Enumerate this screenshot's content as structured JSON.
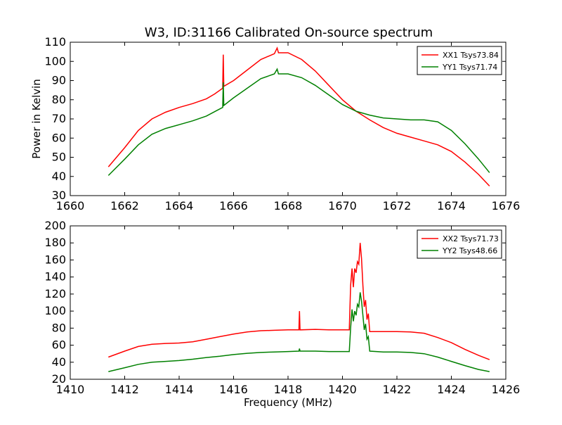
{
  "chart_data": [
    {
      "type": "line",
      "title": "W3, ID:31166 Calibrated On-source spectrum",
      "xlabel": "",
      "ylabel": "Power in Kelvin",
      "xlim": [
        1660,
        1676
      ],
      "ylim": [
        30,
        110
      ],
      "xticks": [
        1660,
        1662,
        1664,
        1666,
        1668,
        1670,
        1672,
        1674,
        1676
      ],
      "yticks": [
        30,
        40,
        50,
        60,
        70,
        80,
        90,
        100,
        110
      ],
      "grid": false,
      "legend_position": "top-right",
      "series": [
        {
          "name": "XX1 Tsys73.84",
          "color": "#ff0000",
          "points": [
            [
              1661.4,
              45
            ],
            [
              1662,
              55
            ],
            [
              1662.5,
              64
            ],
            [
              1663,
              70
            ],
            [
              1663.5,
              73.5
            ],
            [
              1664,
              76
            ],
            [
              1664.5,
              78
            ],
            [
              1665,
              80.5
            ],
            [
              1665.3,
              83
            ],
            [
              1665.6,
              86
            ],
            [
              1665.62,
              103.5
            ],
            [
              1665.64,
              87
            ],
            [
              1666,
              90
            ],
            [
              1666.5,
              95.5
            ],
            [
              1667,
              101
            ],
            [
              1667.5,
              104
            ],
            [
              1667.6,
              107
            ],
            [
              1667.65,
              104.5
            ],
            [
              1668,
              104.5
            ],
            [
              1668.5,
              101
            ],
            [
              1669,
              95
            ],
            [
              1669.5,
              87.5
            ],
            [
              1670,
              80
            ],
            [
              1670.5,
              74
            ],
            [
              1671,
              69.5
            ],
            [
              1671.5,
              65.5
            ],
            [
              1672,
              62.5
            ],
            [
              1672.5,
              60.5
            ],
            [
              1673,
              58.5
            ],
            [
              1673.5,
              56.5
            ],
            [
              1674,
              53
            ],
            [
              1674.5,
              47.5
            ],
            [
              1675,
              41
            ],
            [
              1675.4,
              35
            ]
          ]
        },
        {
          "name": "YY1 Tsys71.74",
          "color": "#008000",
          "points": [
            [
              1661.4,
              40.5
            ],
            [
              1662,
              49
            ],
            [
              1662.5,
              56.5
            ],
            [
              1663,
              62
            ],
            [
              1663.5,
              65
            ],
            [
              1664,
              67
            ],
            [
              1664.5,
              69
            ],
            [
              1665,
              71.5
            ],
            [
              1665.4,
              74.5
            ],
            [
              1665.6,
              76
            ],
            [
              1665.62,
              89
            ],
            [
              1665.64,
              77
            ],
            [
              1666,
              81
            ],
            [
              1666.5,
              86
            ],
            [
              1667,
              91
            ],
            [
              1667.5,
              93.5
            ],
            [
              1667.6,
              96
            ],
            [
              1667.65,
              93.5
            ],
            [
              1668,
              93.5
            ],
            [
              1668.5,
              91.5
            ],
            [
              1669,
              87.5
            ],
            [
              1669.5,
              82.5
            ],
            [
              1670,
              77.5
            ],
            [
              1670.5,
              74
            ],
            [
              1671,
              72
            ],
            [
              1671.5,
              70.5
            ],
            [
              1672,
              70
            ],
            [
              1672.5,
              69.5
            ],
            [
              1673,
              69.5
            ],
            [
              1673.5,
              68.5
            ],
            [
              1674,
              64
            ],
            [
              1674.5,
              57
            ],
            [
              1675,
              49
            ],
            [
              1675.4,
              42
            ]
          ]
        }
      ]
    },
    {
      "type": "line",
      "title": "",
      "xlabel": "Frequency (MHz)",
      "ylabel": "",
      "xlim": [
        1410,
        1426
      ],
      "ylim": [
        20,
        200
      ],
      "xticks": [
        1410,
        1412,
        1414,
        1416,
        1418,
        1420,
        1422,
        1424,
        1426
      ],
      "yticks": [
        20,
        40,
        60,
        80,
        100,
        120,
        140,
        160,
        180,
        200
      ],
      "grid": false,
      "legend_position": "top-right",
      "series": [
        {
          "name": "XX2 Tsys71.73",
          "color": "#ff0000",
          "points": [
            [
              1411.4,
              46
            ],
            [
              1412,
              53
            ],
            [
              1412.5,
              58.5
            ],
            [
              1413,
              61
            ],
            [
              1413.5,
              62
            ],
            [
              1414,
              62.5
            ],
            [
              1414.5,
              64
            ],
            [
              1415,
              67
            ],
            [
              1415.5,
              70
            ],
            [
              1416,
              73
            ],
            [
              1416.5,
              75.5
            ],
            [
              1417,
              77
            ],
            [
              1417.5,
              77.5
            ],
            [
              1418,
              78
            ],
            [
              1418.4,
              78
            ],
            [
              1418.42,
              100
            ],
            [
              1418.44,
              78
            ],
            [
              1419,
              78.5
            ],
            [
              1419.5,
              78
            ],
            [
              1420,
              78
            ],
            [
              1420.25,
              78
            ],
            [
              1420.3,
              130
            ],
            [
              1420.35,
              150
            ],
            [
              1420.4,
              128
            ],
            [
              1420.45,
              150
            ],
            [
              1420.5,
              145
            ],
            [
              1420.55,
              158
            ],
            [
              1420.6,
              155
            ],
            [
              1420.65,
              180
            ],
            [
              1420.7,
              162
            ],
            [
              1420.75,
              130
            ],
            [
              1420.8,
              105
            ],
            [
              1420.85,
              113
            ],
            [
              1420.9,
              90
            ],
            [
              1420.95,
              97
            ],
            [
              1421,
              76
            ],
            [
              1421.5,
              76
            ],
            [
              1422,
              76
            ],
            [
              1422.5,
              75.5
            ],
            [
              1423,
              74
            ],
            [
              1423.5,
              69
            ],
            [
              1424,
              63
            ],
            [
              1424.5,
              55
            ],
            [
              1425,
              48
            ],
            [
              1425.4,
              43
            ]
          ]
        },
        {
          "name": "YY2 Tsys48.66",
          "color": "#008000",
          "points": [
            [
              1411.4,
              29
            ],
            [
              1412,
              33.5
            ],
            [
              1412.5,
              37.5
            ],
            [
              1413,
              40
            ],
            [
              1413.5,
              41
            ],
            [
              1414,
              42
            ],
            [
              1414.5,
              43.5
            ],
            [
              1415,
              45.5
            ],
            [
              1415.5,
              47
            ],
            [
              1416,
              49
            ],
            [
              1416.5,
              50.5
            ],
            [
              1417,
              51.5
            ],
            [
              1417.5,
              52
            ],
            [
              1418,
              52.5
            ],
            [
              1418.4,
              53
            ],
            [
              1418.42,
              56
            ],
            [
              1418.44,
              53
            ],
            [
              1419,
              53
            ],
            [
              1419.5,
              52.5
            ],
            [
              1420,
              52.5
            ],
            [
              1420.25,
              52.5
            ],
            [
              1420.3,
              80
            ],
            [
              1420.35,
              102
            ],
            [
              1420.4,
              88
            ],
            [
              1420.45,
              100
            ],
            [
              1420.5,
              95
            ],
            [
              1420.55,
              108
            ],
            [
              1420.6,
              105
            ],
            [
              1420.65,
              122
            ],
            [
              1420.7,
              112
            ],
            [
              1420.75,
              95
            ],
            [
              1420.8,
              78
            ],
            [
              1420.85,
              85
            ],
            [
              1420.9,
              67
            ],
            [
              1420.95,
              70
            ],
            [
              1421,
              53
            ],
            [
              1421.5,
              52
            ],
            [
              1422,
              52
            ],
            [
              1422.5,
              51.5
            ],
            [
              1423,
              50
            ],
            [
              1423.5,
              46
            ],
            [
              1424,
              41
            ],
            [
              1424.5,
              36
            ],
            [
              1425,
              31.5
            ],
            [
              1425.4,
              29
            ]
          ]
        }
      ]
    }
  ]
}
